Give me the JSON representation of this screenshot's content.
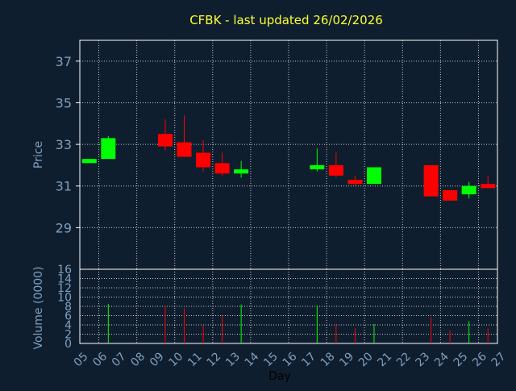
{
  "chart_data": {
    "type": "candlestick",
    "title": "CFBK - last updated 26/02/2026",
    "xlabel": "Day",
    "ylabel_price": "Price",
    "ylabel_volume": "Volume (0000)",
    "x_ticks": [
      "05",
      "06",
      "07",
      "08",
      "09",
      "10",
      "11",
      "12",
      "13",
      "14",
      "15",
      "16",
      "17",
      "18",
      "19",
      "20",
      "21",
      "22",
      "23",
      "24",
      "25",
      "26",
      "27"
    ],
    "price_ylim": [
      27,
      38
    ],
    "price_yticks": [
      "29",
      "31",
      "33",
      "35",
      "37"
    ],
    "volume_ylim": [
      0,
      16
    ],
    "volume_yticks": [
      "0",
      "2",
      "4",
      "6",
      "8",
      "10",
      "12",
      "14",
      "16"
    ],
    "grid": true,
    "colors": {
      "up": "#00ff00",
      "down": "#ff0000",
      "title": "#ffff33",
      "axis": "#7f9fbf",
      "background": "#0f1e2e"
    },
    "candles": [
      {
        "day": "05",
        "open": 32.1,
        "close": 32.3,
        "high": 32.3,
        "low": 32.1,
        "volume": 0
      },
      {
        "day": "06",
        "open": 32.3,
        "close": 33.3,
        "high": 33.4,
        "low": 32.3,
        "volume": 8.5
      },
      {
        "day": "09",
        "open": 33.5,
        "close": 32.9,
        "high": 34.2,
        "low": 32.7,
        "volume": 8.0
      },
      {
        "day": "10",
        "open": 33.1,
        "close": 32.4,
        "high": 34.4,
        "low": 32.4,
        "volume": 7.6
      },
      {
        "day": "11",
        "open": 32.6,
        "close": 31.9,
        "high": 33.2,
        "low": 31.7,
        "volume": 3.8
      },
      {
        "day": "12",
        "open": 32.1,
        "close": 31.6,
        "high": 32.6,
        "low": 31.5,
        "volume": 6.0
      },
      {
        "day": "13",
        "open": 31.6,
        "close": 31.8,
        "high": 32.2,
        "low": 31.4,
        "volume": 8.4
      },
      {
        "day": "17",
        "open": 31.8,
        "close": 32.0,
        "high": 32.8,
        "low": 31.7,
        "volume": 8.2
      },
      {
        "day": "18",
        "open": 32.0,
        "close": 31.5,
        "high": 32.6,
        "low": 31.4,
        "volume": 4.0
      },
      {
        "day": "19",
        "open": 31.3,
        "close": 31.1,
        "high": 31.5,
        "low": 31.0,
        "volume": 3.2
      },
      {
        "day": "20",
        "open": 31.1,
        "close": 31.9,
        "high": 31.9,
        "low": 31.1,
        "volume": 4.2
      },
      {
        "day": "23",
        "open": 32.0,
        "close": 30.5,
        "high": 32.0,
        "low": 30.5,
        "volume": 5.6
      },
      {
        "day": "24",
        "open": 30.8,
        "close": 30.3,
        "high": 30.8,
        "low": 30.3,
        "volume": 2.9
      },
      {
        "day": "25",
        "open": 30.6,
        "close": 31.0,
        "high": 31.2,
        "low": 30.4,
        "volume": 4.8
      },
      {
        "day": "26",
        "open": 31.1,
        "close": 30.9,
        "high": 31.5,
        "low": 30.9,
        "volume": 3.2
      }
    ]
  }
}
